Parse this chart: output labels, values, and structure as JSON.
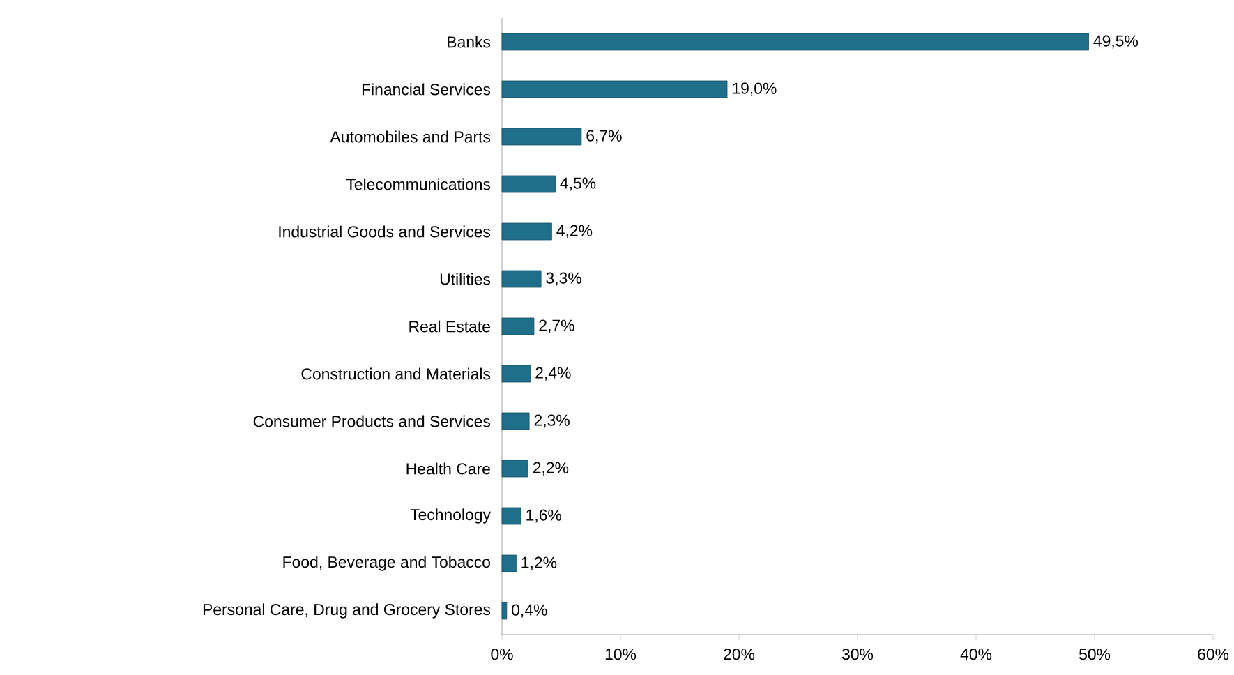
{
  "chart_data": {
    "type": "bar",
    "orientation": "horizontal",
    "categories": [
      "Banks",
      "Financial Services",
      "Automobiles and Parts",
      "Telecommunications",
      "Industrial Goods and Services",
      "Utilities",
      "Real Estate",
      "Construction and Materials",
      "Consumer Products and Services",
      "Health Care",
      "Technology",
      "Food, Beverage and Tobacco",
      "Personal Care, Drug and Grocery Stores"
    ],
    "values": [
      49.5,
      19.0,
      6.7,
      4.5,
      4.2,
      3.3,
      2.7,
      2.4,
      2.3,
      2.2,
      1.6,
      1.2,
      0.4
    ],
    "value_labels": [
      "49,5%",
      "19,0%",
      "6,7%",
      "4,5%",
      "4,2%",
      "3,3%",
      "2,7%",
      "2,4%",
      "2,3%",
      "2,2%",
      "1,6%",
      "1,2%",
      "0,4%"
    ],
    "color": "#1f6f8b",
    "xlim": [
      0,
      60
    ],
    "xticks": [
      {
        "value": 0,
        "label": "0%"
      },
      {
        "value": 10,
        "label": "10%"
      },
      {
        "value": 20,
        "label": "20%"
      },
      {
        "value": 30,
        "label": "30%"
      },
      {
        "value": 40,
        "label": "40%"
      },
      {
        "value": 50,
        "label": "50%"
      },
      {
        "value": 60,
        "label": "60%"
      }
    ]
  }
}
